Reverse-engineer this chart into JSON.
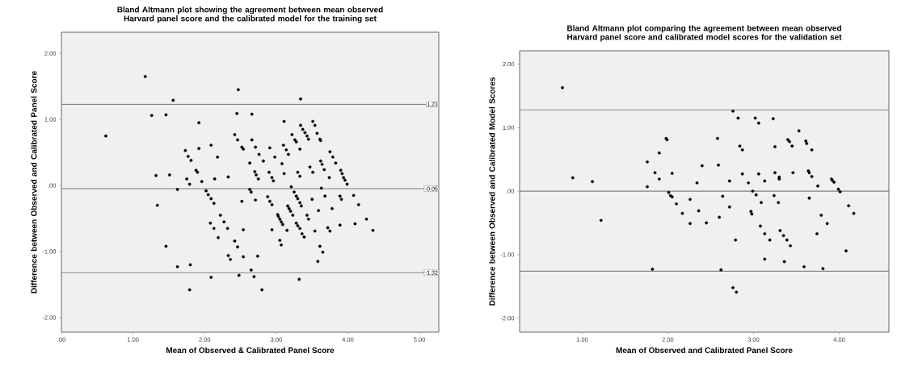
{
  "chart_data": [
    {
      "type": "scatter",
      "title": "Bland Altmann plot showing the agreement between mean observed Harvard panel score and the calibrated model for the training set",
      "xlabel": "Mean of Observed & Calibrated Panel Score",
      "ylabel": "Difference between Observed and Calibrated Panel Score",
      "color": "#000000",
      "xlim": [
        0,
        5.27
      ],
      "ylim": [
        -2.22,
        2.32
      ],
      "xticks": [
        {
          "value": 0,
          "label": ".00"
        },
        {
          "value": 1,
          "label": "1.00"
        },
        {
          "value": 2,
          "label": "2.00"
        },
        {
          "value": 3,
          "label": "3.00"
        },
        {
          "value": 4,
          "label": "4.00"
        },
        {
          "value": 5,
          "label": "5.00"
        }
      ],
      "yticks": [
        {
          "value": -2,
          "label": "-2.00"
        },
        {
          "value": -1,
          "label": "-1.00"
        },
        {
          "value": 0,
          "label": ".00"
        },
        {
          "value": 1,
          "label": "1.00"
        },
        {
          "value": 2,
          "label": "2.00"
        }
      ],
      "ref_lines": [
        {
          "axis": "y",
          "value": 1.23,
          "label": "1.23",
          "color": "#808080"
        },
        {
          "axis": "y",
          "value": -0.05,
          "label": "-0.05",
          "color": "#808080"
        },
        {
          "axis": "y",
          "value": -1.32,
          "label": "-1.32",
          "color": "#808080"
        }
      ],
      "x": [
        1.17,
        1.56,
        1.26,
        1.46,
        0.62,
        1.92,
        1.73,
        1.77,
        1.81,
        1.92,
        2.09,
        2.18,
        1.88,
        1.9,
        1.32,
        1.51,
        1.75,
        1.79,
        1.96,
        2.14,
        1.62,
        2.02,
        2.05,
        2.09,
        2.13,
        1.34,
        2.22,
        2.27,
        2.08,
        2.13,
        2.19,
        1.46,
        1.62,
        1.8,
        2.09,
        1.79,
        2.47,
        3.34,
        2.45,
        2.66,
        3.11,
        3.51,
        3.54,
        3.34,
        3.37,
        3.4,
        3.43,
        3.45,
        2.42,
        2.46,
        2.52,
        2.54,
        2.66,
        2.71,
        2.76,
        2.82,
        2.91,
        2.98,
        3.1,
        3.14,
        3.17,
        3.22,
        3.26,
        3.28,
        3.33,
        3.57,
        3.61,
        3.62,
        3.75,
        3.79,
        3.83,
        2.63,
        3.08,
        3.62,
        3.64,
        3.67,
        3.47,
        3.51,
        2.7,
        2.72,
        2.75,
        2.9,
        2.94,
        2.96,
        3.11,
        3.3,
        3.33,
        2.33,
        3.74,
        3.9,
        3.92,
        3.94,
        3.96,
        3.99,
        2.63,
        2.65,
        3.21,
        3.25,
        3.28,
        3.3,
        3.33,
        3.35,
        3.63,
        3.68,
        4.08,
        3.89,
        3.91,
        2.88,
        2.91,
        2.94,
        2.52,
        2.71,
        3.5,
        4.15,
        3.02,
        3.03,
        3.05,
        3.07,
        3.09,
        3.16,
        3.18,
        3.2,
        3.23,
        3.28,
        3.3,
        3.33,
        3.36,
        3.39,
        3.43,
        3.45,
        3.59,
        3.78,
        3.89,
        4.1,
        4.26,
        4.35,
        3.72,
        3.75,
        3.54,
        3.15,
        2.94,
        2.32,
        2.54,
        2.42,
        2.46,
        2.33,
        2.36,
        2.54,
        2.74,
        3.05,
        3.07,
        3.61,
        3.65,
        3.58,
        2.65,
        2.69,
        2.48,
        3.32,
        2.8
      ],
      "values": [
        1.65,
        1.29,
        1.06,
        1.07,
        0.75,
        0.95,
        0.53,
        0.44,
        0.38,
        0.56,
        0.61,
        0.43,
        0.23,
        0.2,
        0.15,
        0.16,
        0.1,
        0.02,
        0.06,
        0.1,
        -0.06,
        -0.08,
        -0.14,
        -0.2,
        -0.27,
        -0.3,
        -0.45,
        -0.55,
        -0.57,
        -0.65,
        -0.79,
        -0.92,
        -1.23,
        -1.2,
        -1.39,
        -1.58,
        1.45,
        1.31,
        1.09,
        1.08,
        0.97,
        0.97,
        0.91,
        0.91,
        0.85,
        0.8,
        0.75,
        0.7,
        0.77,
        0.69,
        0.58,
        0.55,
        0.69,
        0.58,
        0.47,
        0.37,
        0.57,
        0.43,
        0.61,
        0.54,
        0.47,
        0.77,
        0.69,
        0.66,
        0.55,
        0.79,
        0.7,
        0.68,
        0.51,
        0.43,
        0.34,
        0.34,
        0.33,
        0.37,
        0.32,
        0.24,
        0.28,
        0.2,
        0.21,
        0.16,
        0.1,
        0.2,
        0.12,
        0.07,
        0.18,
        0.2,
        0.14,
        0.13,
        0.12,
        0.23,
        0.18,
        0.12,
        0.08,
        0.02,
        -0.06,
        -0.1,
        -0.02,
        -0.1,
        -0.16,
        -0.2,
        -0.26,
        -0.31,
        -0.04,
        -0.16,
        -0.15,
        -0.16,
        -0.21,
        -0.17,
        -0.24,
        -0.29,
        -0.24,
        -0.22,
        -0.21,
        -0.29,
        -0.44,
        -0.47,
        -0.51,
        -0.55,
        -0.59,
        -0.31,
        -0.35,
        -0.39,
        -0.45,
        -0.57,
        -0.61,
        -0.65,
        -0.73,
        -0.78,
        -0.45,
        -0.51,
        -0.38,
        -0.35,
        -0.6,
        -0.58,
        -0.51,
        -0.68,
        -0.64,
        -0.69,
        -0.69,
        -0.68,
        -0.67,
        -0.65,
        -0.67,
        -0.84,
        -0.93,
        -1.06,
        -1.12,
        -1.08,
        -1.07,
        -0.83,
        -0.9,
        -0.92,
        -1.01,
        -1.15,
        -1.28,
        -1.38,
        -1.36,
        -1.42,
        -1.58
      ]
    },
    {
      "type": "scatter",
      "title": "Bland Altmann plot comparing the agreement between mean observed Harvard panel score and calibrated model scores for the validation set",
      "xlabel": "Mean of Observed and Calibrated Panel Score",
      "ylabel": "Difference between Observed and Calibrated Model Scores",
      "color": "#000000",
      "xlim": [
        0.27,
        4.58
      ],
      "ylim": [
        -2.22,
        2.21
      ],
      "xticks": [
        {
          "value": 1,
          "label": "1.00"
        },
        {
          "value": 2,
          "label": "2.00"
        },
        {
          "value": 3,
          "label": "3.00"
        },
        {
          "value": 4,
          "label": "4.00"
        }
      ],
      "yticks": [
        {
          "value": -2,
          "label": "-2.00"
        },
        {
          "value": -1,
          "label": "-1.00"
        },
        {
          "value": 0,
          "label": ".00"
        },
        {
          "value": 1,
          "label": "1.00"
        },
        {
          "value": 2,
          "label": "2.00"
        }
      ],
      "ref_lines": [
        {
          "axis": "y",
          "value": 1.28,
          "color": "#808080"
        },
        {
          "axis": "y",
          "value": 0.0,
          "color": "#808080"
        },
        {
          "axis": "y",
          "value": -1.26,
          "color": "#808080"
        }
      ],
      "x": [
        0.77,
        0.89,
        1.12,
        1.22,
        1.76,
        1.9,
        1.98,
        1.99,
        1.85,
        1.9,
        1.76,
        2.05,
        2.01,
        2.03,
        2.05,
        2.1,
        2.17,
        1.82,
        2.26,
        2.26,
        2.36,
        2.34,
        2.4,
        2.45,
        2.58,
        2.59,
        2.6,
        2.64,
        2.62,
        2.72,
        2.72,
        2.76,
        2.82,
        2.84,
        2.87,
        2.87,
        2.79,
        2.76,
        2.8,
        2.94,
        2.97,
        2.98,
        2.99,
        3.03,
        3.02,
        3.06,
        3.06,
        3.09,
        3.08,
        3.13,
        3.13,
        3.13,
        3.19,
        3.23,
        3.25,
        3.24,
        3.25,
        3.3,
        3.3,
        3.29,
        3.31,
        3.35,
        3.39,
        3.43,
        3.36,
        3.4,
        3.42,
        3.45,
        3.46,
        3.53,
        3.61,
        3.62,
        3.68,
        3.64,
        3.65,
        3.68,
        3.65,
        3.75,
        3.74,
        3.79,
        3.86,
        3.59,
        3.81,
        3.91,
        3.92,
        3.94,
        3.99,
        4.01,
        4.11,
        4.17,
        4.08
      ],
      "values": [
        1.63,
        0.21,
        0.15,
        -0.46,
        0.46,
        0.6,
        0.83,
        0.81,
        0.29,
        0.19,
        0.07,
        0.28,
        -0.02,
        -0.07,
        -0.09,
        -0.2,
        -0.35,
        -1.23,
        -0.13,
        -0.51,
        -0.31,
        0.13,
        0.4,
        -0.5,
        0.83,
        0.41,
        -0.41,
        -0.08,
        -1.24,
        0.16,
        -0.25,
        1.26,
        1.15,
        0.71,
        0.65,
        0.27,
        -0.77,
        -1.52,
        -1.59,
        0.13,
        -0.32,
        -0.36,
        0.0,
        -0.06,
        1.15,
        1.07,
        0.27,
        -0.18,
        -0.55,
        0.16,
        -0.67,
        -1.07,
        -0.77,
        1.14,
        0.7,
        -0.07,
        0.29,
        0.22,
        0.19,
        -0.18,
        -0.62,
        -0.7,
        -0.77,
        -0.86,
        -1.11,
        0.81,
        0.78,
        0.71,
        0.29,
        0.95,
        0.79,
        0.75,
        0.65,
        0.32,
        0.29,
        0.23,
        -0.11,
        0.08,
        -0.67,
        -0.38,
        -0.51,
        -1.19,
        -1.22,
        0.19,
        0.17,
        0.14,
        0.03,
        -0.01,
        -0.23,
        -0.35,
        -0.94
      ]
    }
  ]
}
